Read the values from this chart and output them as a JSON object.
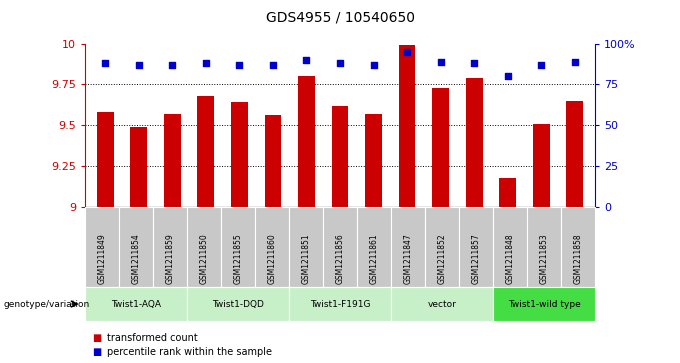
{
  "title": "GDS4955 / 10540650",
  "samples": [
    "GSM1211849",
    "GSM1211854",
    "GSM1211859",
    "GSM1211850",
    "GSM1211855",
    "GSM1211860",
    "GSM1211851",
    "GSM1211856",
    "GSM1211861",
    "GSM1211847",
    "GSM1211852",
    "GSM1211857",
    "GSM1211848",
    "GSM1211853",
    "GSM1211858"
  ],
  "transformed_counts": [
    9.58,
    9.49,
    9.57,
    9.68,
    9.64,
    9.56,
    9.8,
    9.62,
    9.57,
    9.99,
    9.73,
    9.79,
    9.18,
    9.51,
    9.65
  ],
  "percentile_ranks": [
    88,
    87,
    87,
    88,
    87,
    87,
    90,
    88,
    87,
    95,
    89,
    88,
    80,
    87,
    89
  ],
  "groups": [
    {
      "name": "Twist1-AQA",
      "indices": [
        0,
        1,
        2
      ],
      "color": "#c8f0c8"
    },
    {
      "name": "Twist1-DQD",
      "indices": [
        3,
        4,
        5
      ],
      "color": "#c8f0c8"
    },
    {
      "name": "Twist1-F191G",
      "indices": [
        6,
        7,
        8
      ],
      "color": "#c8f0c8"
    },
    {
      "name": "vector",
      "indices": [
        9,
        10,
        11
      ],
      "color": "#c8f0c8"
    },
    {
      "name": "Twist1-wild type",
      "indices": [
        12,
        13,
        14
      ],
      "color": "#44dd44"
    }
  ],
  "ylim_left": [
    9.0,
    10.0
  ],
  "ylim_right": [
    0,
    100
  ],
  "yticks_left": [
    9.0,
    9.25,
    9.5,
    9.75,
    10.0
  ],
  "yticks_right": [
    0,
    25,
    50,
    75,
    100
  ],
  "bar_color": "#cc0000",
  "dot_color": "#0000cc",
  "bar_width": 0.5,
  "legend_bar_label": "transformed count",
  "legend_dot_label": "percentile rank within the sample",
  "genotype_label": "genotype/variation",
  "sample_bg": "#c8c8c8",
  "title_fontsize": 10
}
